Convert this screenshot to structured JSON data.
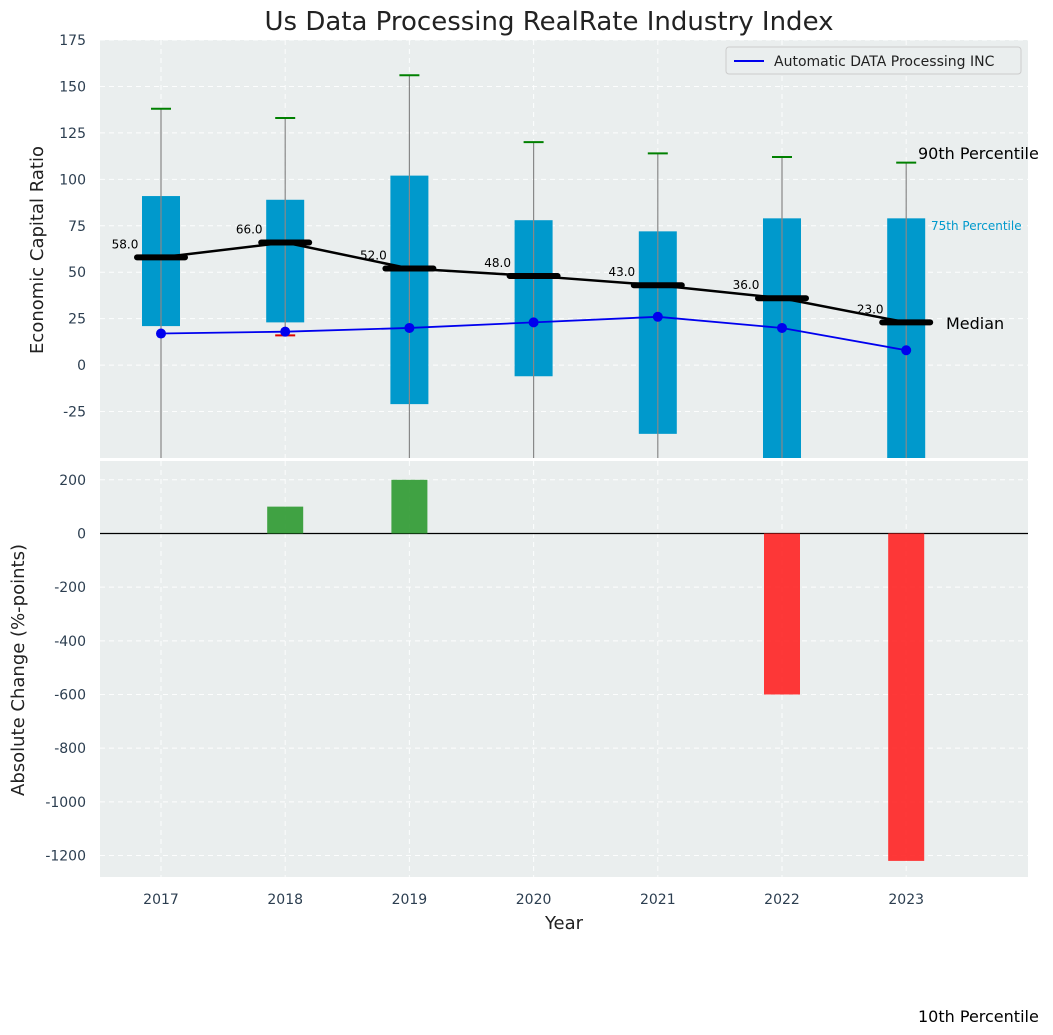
{
  "chart_data": [
    {
      "type": "box",
      "title": "Us Data Processing RealRate Industry Index",
      "xlabel": "",
      "ylabel": "Economic Capital Ratio",
      "ylim": [
        -50,
        175
      ],
      "yticks": [
        -25,
        0,
        25,
        50,
        75,
        100,
        125,
        150,
        175
      ],
      "categories": [
        "2017",
        "2018",
        "2019",
        "2020",
        "2021",
        "2022",
        "2023"
      ],
      "series": [
        {
          "name": "p10",
          "values": [
            -50,
            16,
            -50,
            -50,
            -50,
            -50,
            -50
          ]
        },
        {
          "name": "p25",
          "values": [
            21,
            23,
            -21,
            -6,
            -37,
            -50,
            -50
          ]
        },
        {
          "name": "median",
          "values": [
            58,
            66,
            52,
            48,
            43,
            36,
            23
          ]
        },
        {
          "name": "p75",
          "values": [
            91,
            89,
            102,
            78,
            72,
            79,
            79
          ]
        },
        {
          "name": "p90",
          "values": [
            138,
            133,
            156,
            120,
            114,
            112,
            109
          ]
        },
        {
          "name": "Automatic DATA Processing INC",
          "values": [
            17,
            18,
            20,
            23,
            26,
            20,
            8
          ]
        }
      ],
      "median_labels": [
        "58.0",
        "66.0",
        "52.0",
        "48.0",
        "43.0",
        "36.0",
        "23.0"
      ],
      "legend": {
        "label": "Automatic DATA Processing INC",
        "position": "top-right"
      },
      "annotations": {
        "p90": "90th Percentile",
        "p75": "75th Percentile",
        "median": "Median",
        "p10": "10th Percentile"
      }
    },
    {
      "type": "bar",
      "xlabel": "Year",
      "ylabel": "Absolute Change (%-points)",
      "ylim": [
        -1280,
        270
      ],
      "yticks": [
        -1200,
        -1000,
        -800,
        -600,
        -400,
        -200,
        0,
        200
      ],
      "categories": [
        "2017",
        "2018",
        "2019",
        "2020",
        "2021",
        "2022",
        "2023"
      ],
      "values": [
        0,
        100,
        200,
        0,
        0,
        -600,
        -1220
      ]
    }
  ],
  "colors": {
    "box": "#0099cc",
    "median": "#000000",
    "company": "#0000ee",
    "whisker": "#888888",
    "p90_cap": "#008000",
    "p10_cap": "#dd0000",
    "positive": "#2e9930",
    "negative": "#ff2222",
    "plot_bg": "#eaeeee"
  }
}
